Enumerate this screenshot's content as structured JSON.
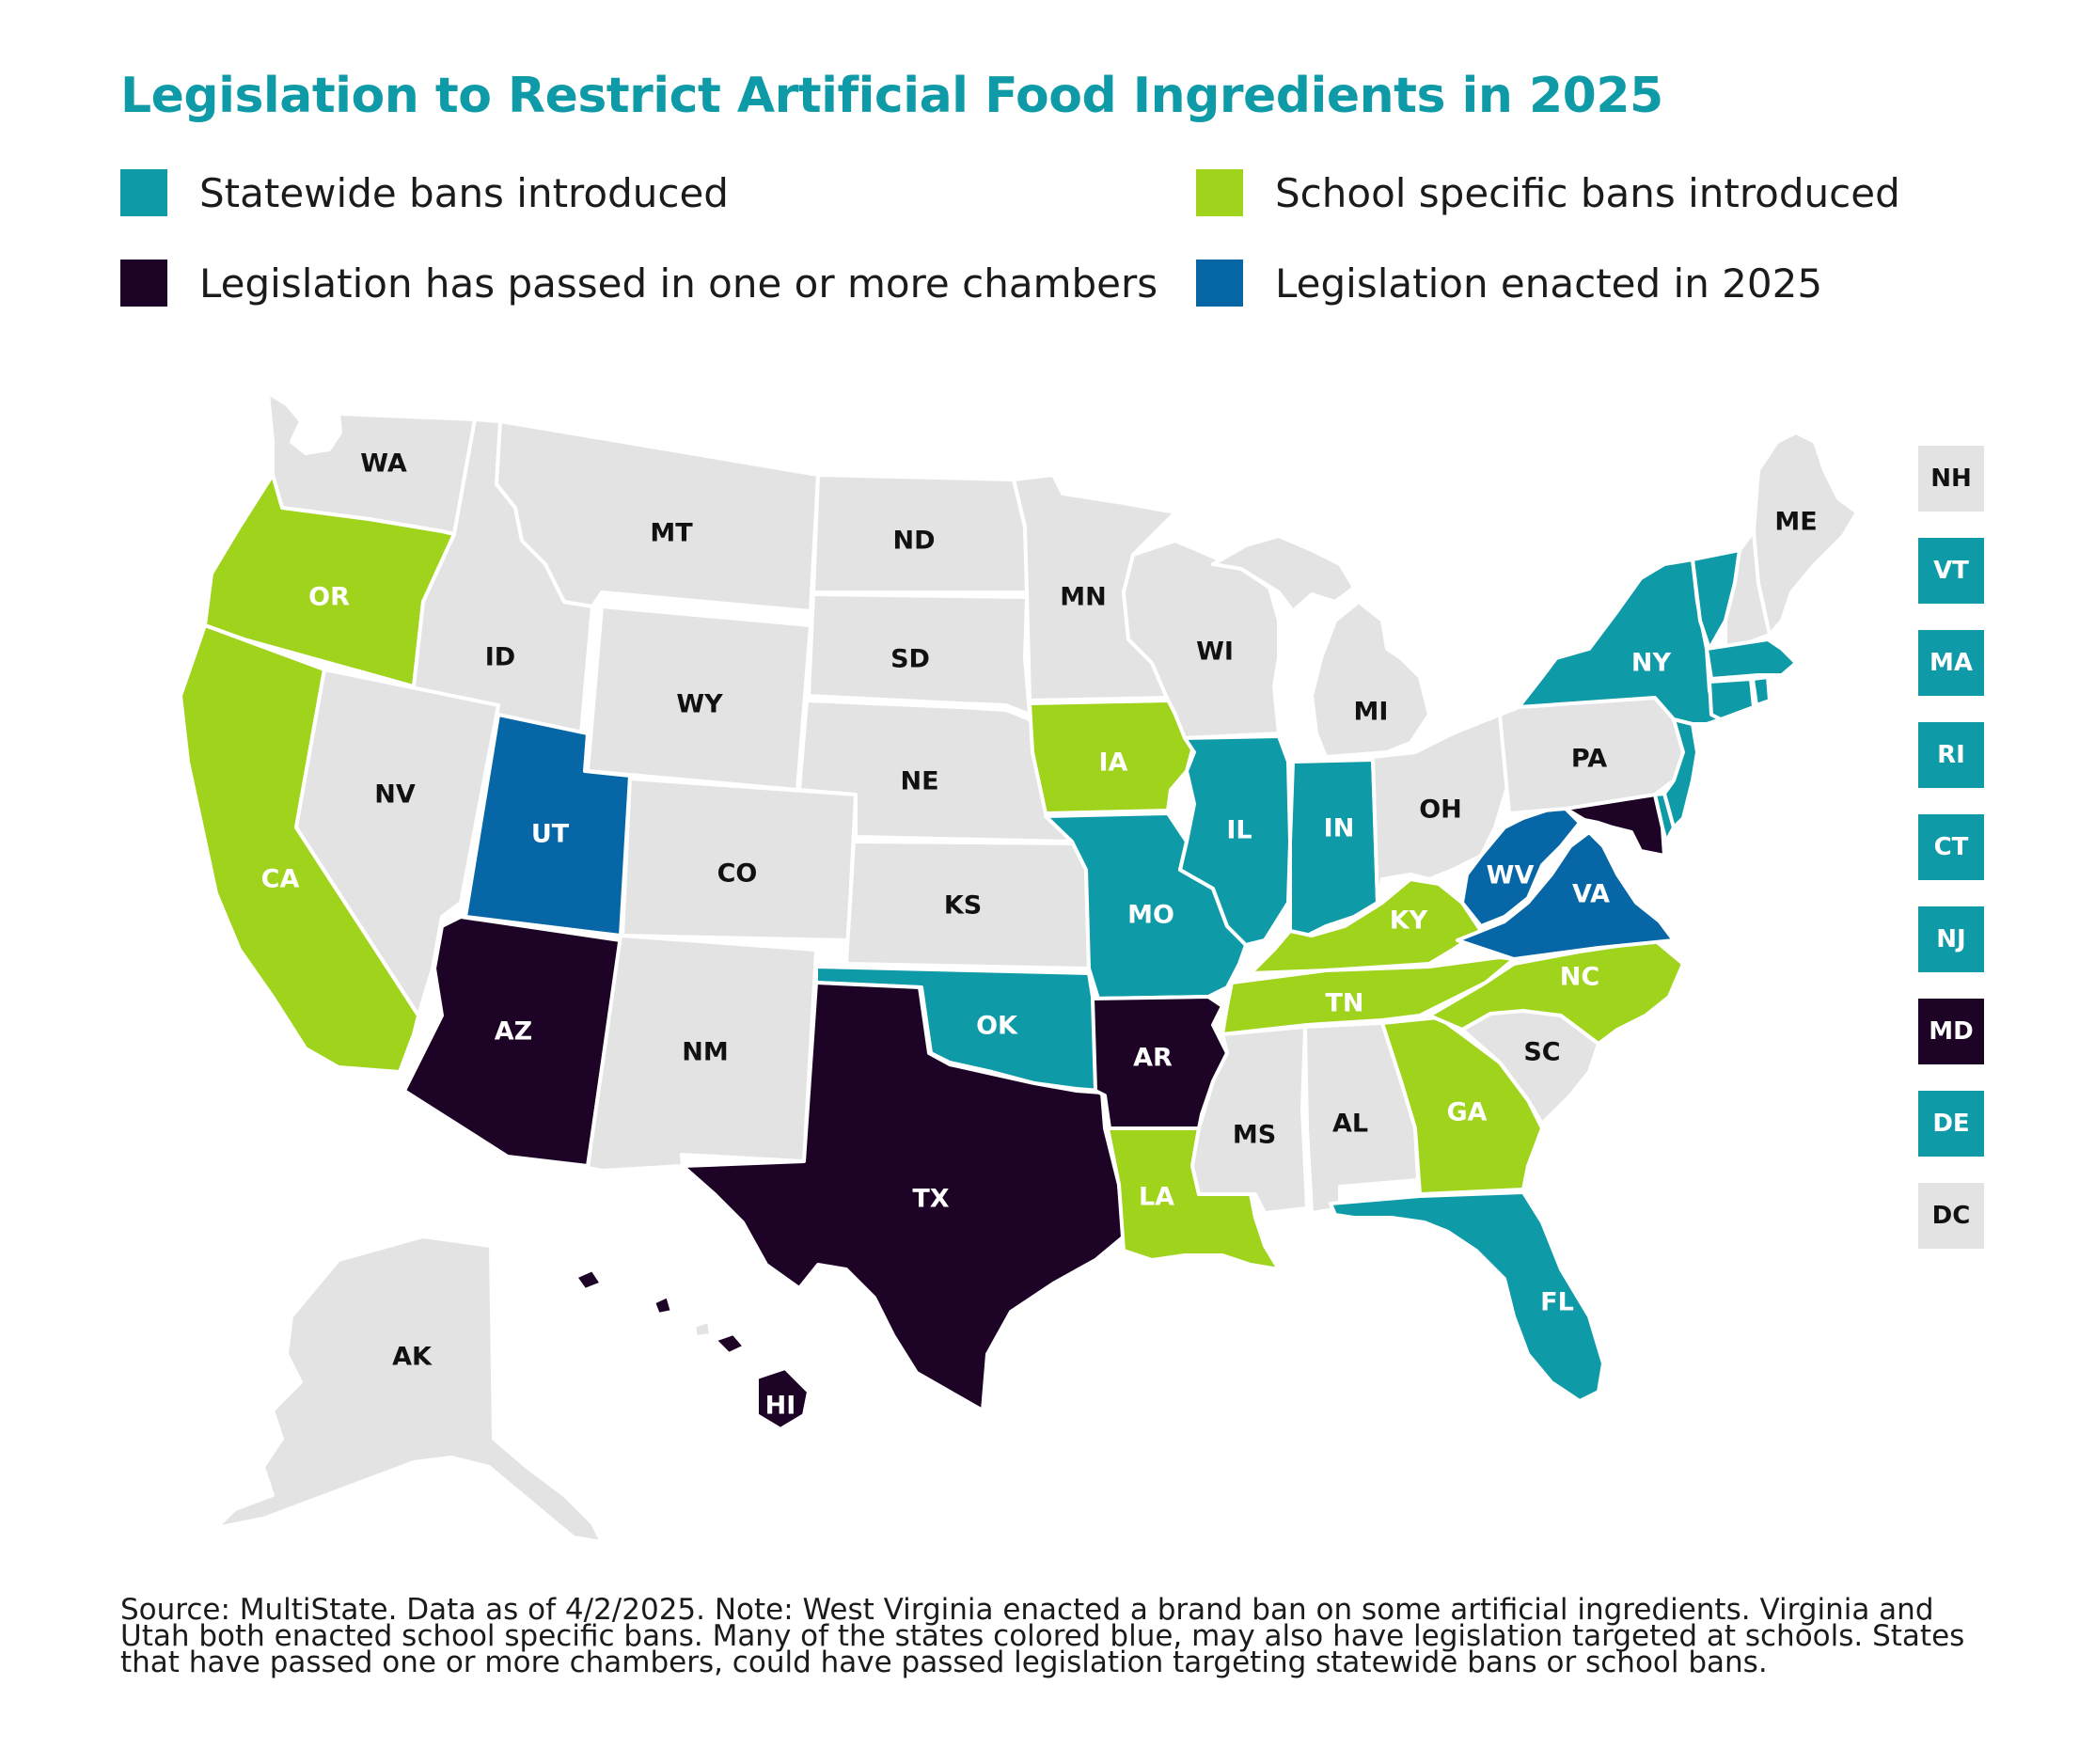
{
  "title": "Legislation to Restrict Artificial Food Ingredients in 2025",
  "legend": [
    {
      "label": "Statewide bans introduced",
      "color": "#0f9aa8"
    },
    {
      "label": "School specific bans introduced",
      "color": "#9fd31c"
    },
    {
      "label": "Legislation has passed in one or more chambers",
      "color": "#1d0326"
    },
    {
      "label": "Legislation enacted in 2025",
      "color": "#0766a6"
    }
  ],
  "colors": {
    "none": "#e3e3e3",
    "statewide": "#0f9aa8",
    "school": "#9fd31c",
    "passed": "#1d0326",
    "enacted": "#0766a6",
    "white_text": "#ffffff",
    "dark_text": "#111111"
  },
  "states": {
    "WA": "WA",
    "OR": "OR",
    "CA": "CA",
    "ID": "ID",
    "NV": "NV",
    "MT": "MT",
    "WY": "WY",
    "UT": "UT",
    "AZ": "AZ",
    "CO": "CO",
    "NM": "NM",
    "ND": "ND",
    "SD": "SD",
    "NE": "NE",
    "KS": "KS",
    "OK": "OK",
    "TX": "TX",
    "MN": "MN",
    "IA": "IA",
    "MO": "MO",
    "AR": "AR",
    "LA": "LA",
    "WI": "WI",
    "IL": "IL",
    "MI": "MI",
    "IN": "IN",
    "OH": "OH",
    "KY": "KY",
    "TN": "TN",
    "MS": "MS",
    "AL": "AL",
    "GA": "GA",
    "FL": "FL",
    "SC": "SC",
    "NC": "NC",
    "VA": "VA",
    "WV": "WV",
    "PA": "PA",
    "NY": "NY",
    "ME": "ME",
    "AK": "AK",
    "HI": "HI"
  },
  "small_states": [
    {
      "code": "NH",
      "status": "none"
    },
    {
      "code": "VT",
      "status": "statewide"
    },
    {
      "code": "MA",
      "status": "statewide"
    },
    {
      "code": "RI",
      "status": "statewide"
    },
    {
      "code": "CT",
      "status": "statewide"
    },
    {
      "code": "NJ",
      "status": "statewide"
    },
    {
      "code": "MD",
      "status": "passed"
    },
    {
      "code": "DE",
      "status": "statewide"
    },
    {
      "code": "DC",
      "status": "none"
    }
  ],
  "footnote": "Source: MultiState. Data as of 4/2/2025. Note: West Virginia enacted a brand ban on some artificial ingredients. Virginia and Utah both enacted school specific bans. Many of the states colored blue, may also have legislation targeted at schools. States that have passed one or more chambers, could have passed legislation targeting statewide bans or school bans."
}
